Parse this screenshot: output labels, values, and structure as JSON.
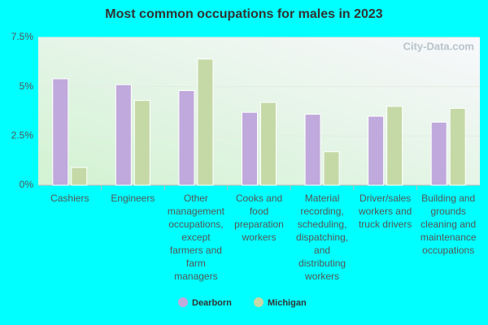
{
  "chart_data": {
    "type": "bar",
    "title": "Most common occupations for males in 2023",
    "watermark": "City-Data.com",
    "categories": [
      "Cashiers",
      "Engineers",
      "Other management occupations, except farmers and farm managers",
      "Cooks and food preparation workers",
      "Material recording, scheduling, dispatching, and distributing workers",
      "Driver/sales workers and truck drivers",
      "Building and grounds cleaning and maintenance occupations"
    ],
    "series": [
      {
        "name": "Dearborn",
        "color": "#c0a9dc",
        "values": [
          5.4,
          5.1,
          4.8,
          3.7,
          3.6,
          3.5,
          3.2
        ]
      },
      {
        "name": "Michigan",
        "color": "#c5d9a7",
        "values": [
          0.9,
          4.3,
          6.4,
          4.2,
          1.7,
          4.0,
          3.9
        ]
      }
    ],
    "ylim": [
      0,
      7.5
    ],
    "yticks": [
      {
        "value": 0,
        "label": "0%"
      },
      {
        "value": 2.5,
        "label": "2.5%"
      },
      {
        "value": 5,
        "label": "5%"
      },
      {
        "value": 7.5,
        "label": "7.5%"
      }
    ],
    "grid": true
  }
}
